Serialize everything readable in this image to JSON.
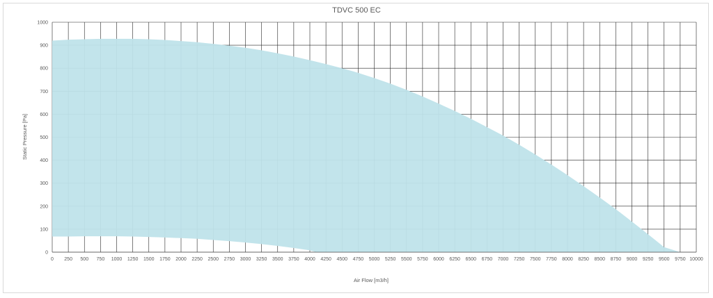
{
  "chart_data": {
    "type": "area",
    "title": "TDVC 500 EC",
    "xlabel": "Air Flow [m3/h]",
    "ylabel": "Static Pressure [Pa]",
    "xlim": [
      0,
      10000
    ],
    "ylim": [
      0,
      1000
    ],
    "x_ticks": [
      0,
      250,
      500,
      750,
      1000,
      1250,
      1500,
      1750,
      2000,
      2250,
      2500,
      2750,
      3000,
      3250,
      3500,
      3750,
      4000,
      4250,
      4500,
      4750,
      5000,
      5250,
      5500,
      5750,
      6000,
      6250,
      6500,
      6750,
      7000,
      7250,
      7500,
      7750,
      8000,
      8250,
      8500,
      8750,
      9000,
      9250,
      9500,
      9750,
      10000
    ],
    "y_ticks": [
      0,
      100,
      200,
      300,
      400,
      500,
      600,
      700,
      800,
      900,
      1000
    ],
    "grid": true,
    "fill_color": "#bfe3ea",
    "series": [
      {
        "role": "upper",
        "x": [
          0,
          250,
          500,
          750,
          1000,
          1250,
          1500,
          1750,
          2000,
          2250,
          2500,
          2750,
          3000,
          3250,
          3500,
          3750,
          4000,
          4250,
          4500,
          4750,
          5000,
          5250,
          5500,
          5750,
          6000,
          6250,
          6500,
          6750,
          7000,
          7250,
          7500,
          7750,
          8000,
          8250,
          8500,
          8750,
          9000,
          9250,
          9500,
          9750
        ],
        "y": [
          920,
          924,
          926,
          928,
          928,
          928,
          926,
          923,
          918,
          913,
          906,
          898,
          889,
          878,
          865,
          851,
          835,
          818,
          800,
          780,
          757,
          733,
          706,
          677,
          646,
          614,
          580,
          544,
          507,
          467,
          425,
          381,
          335,
          287,
          238,
          187,
          133,
          78,
          22,
          0
        ]
      },
      {
        "role": "lower",
        "x": [
          0,
          250,
          500,
          750,
          1000,
          1250,
          1500,
          1750,
          2000,
          2250,
          2500,
          2750,
          3000,
          3250,
          3500,
          3750,
          4000,
          4100
        ],
        "y": [
          68,
          68,
          69,
          69,
          69,
          68,
          66,
          64,
          61,
          58,
          53,
          48,
          42,
          35,
          27,
          18,
          8,
          0
        ]
      }
    ]
  }
}
